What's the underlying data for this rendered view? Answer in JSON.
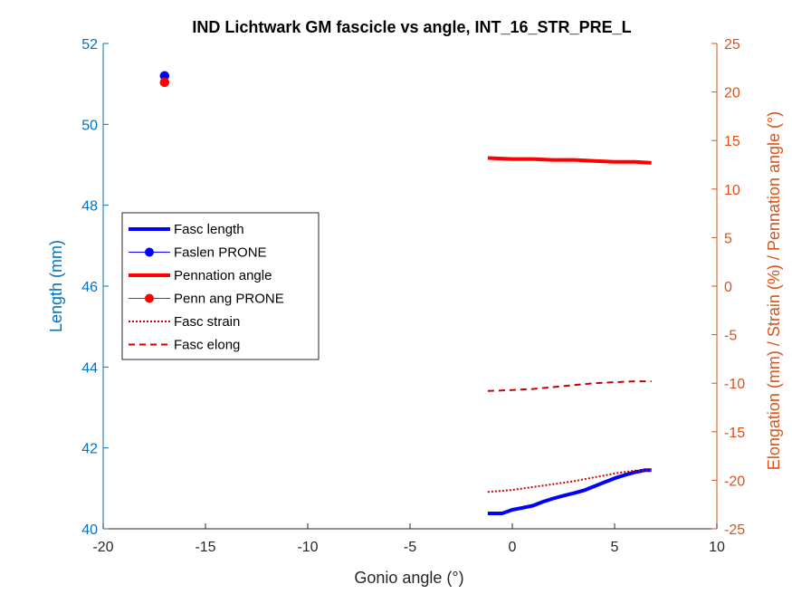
{
  "chart_data": {
    "type": "line",
    "title": "IND Lichtwark GM fascicle vs angle, INT_16_STR_PRE_L",
    "xlabel": "Gonio angle (°)",
    "ylabel_left": "Length (mm)",
    "ylabel_right": "Elongation (mm) / Strain (%) / Pennation angle (°)",
    "xlim": [
      -20,
      10
    ],
    "ylim_left": [
      40,
      52
    ],
    "ylim_right": [
      -25,
      25
    ],
    "xticks": [
      -20,
      -15,
      -10,
      -5,
      0,
      5,
      10
    ],
    "yticks_left": [
      40,
      42,
      44,
      46,
      48,
      50,
      52
    ],
    "yticks_right": [
      -25,
      -20,
      -15,
      -10,
      -5,
      0,
      5,
      10,
      15,
      20,
      25
    ],
    "grid": false,
    "legend_position": "center-left",
    "colors": {
      "left_axis": "#0072BD",
      "right_axis": "#D95319",
      "fasc_length": "#0000FF",
      "pennation": "#FF0000",
      "strain_elong": "#CC0000"
    },
    "series": [
      {
        "name": "Fasc length",
        "axis": "left",
        "style": "solid-thick",
        "color": "#0000FF",
        "x": [
          -1.2,
          -0.5,
          0.0,
          0.5,
          1.0,
          1.5,
          2.0,
          2.5,
          3.0,
          3.5,
          4.0,
          4.5,
          5.0,
          5.5,
          6.0,
          6.5,
          6.8
        ],
        "y": [
          40.38,
          40.38,
          40.47,
          40.52,
          40.57,
          40.67,
          40.75,
          40.82,
          40.88,
          40.95,
          41.05,
          41.15,
          41.25,
          41.33,
          41.4,
          41.45,
          41.45
        ]
      },
      {
        "name": "Faslen PRONE",
        "axis": "left",
        "style": "marker-circle",
        "color": "#0000FF",
        "x": [
          -17.0
        ],
        "y": [
          51.2
        ]
      },
      {
        "name": "Pennation angle",
        "axis": "right",
        "style": "solid-thick",
        "color": "#FF0000",
        "x": [
          -1.2,
          0.0,
          1.0,
          2.0,
          3.0,
          4.0,
          5.0,
          6.0,
          6.8
        ],
        "y": [
          13.2,
          13.1,
          13.1,
          13.0,
          13.0,
          12.9,
          12.8,
          12.8,
          12.7
        ]
      },
      {
        "name": "Penn ang PRONE",
        "axis": "right",
        "style": "marker-circle",
        "color": "#FF0000",
        "x": [
          -17.0
        ],
        "y": [
          21.0
        ]
      },
      {
        "name": "Fasc strain",
        "axis": "right",
        "style": "dotted",
        "color": "#CC0000",
        "x": [
          -1.2,
          0.0,
          1.0,
          2.0,
          3.0,
          4.0,
          5.0,
          6.0,
          6.8
        ],
        "y": [
          -21.2,
          -21.0,
          -20.7,
          -20.4,
          -20.1,
          -19.7,
          -19.3,
          -19.0,
          -19.0
        ]
      },
      {
        "name": "Fasc elong",
        "axis": "right",
        "style": "dashed",
        "color": "#CC0000",
        "x": [
          -1.2,
          0.0,
          1.0,
          2.0,
          3.0,
          4.0,
          5.0,
          6.0,
          6.8
        ],
        "y": [
          -10.8,
          -10.7,
          -10.6,
          -10.4,
          -10.2,
          -10.0,
          -9.9,
          -9.8,
          -9.8
        ]
      }
    ]
  }
}
